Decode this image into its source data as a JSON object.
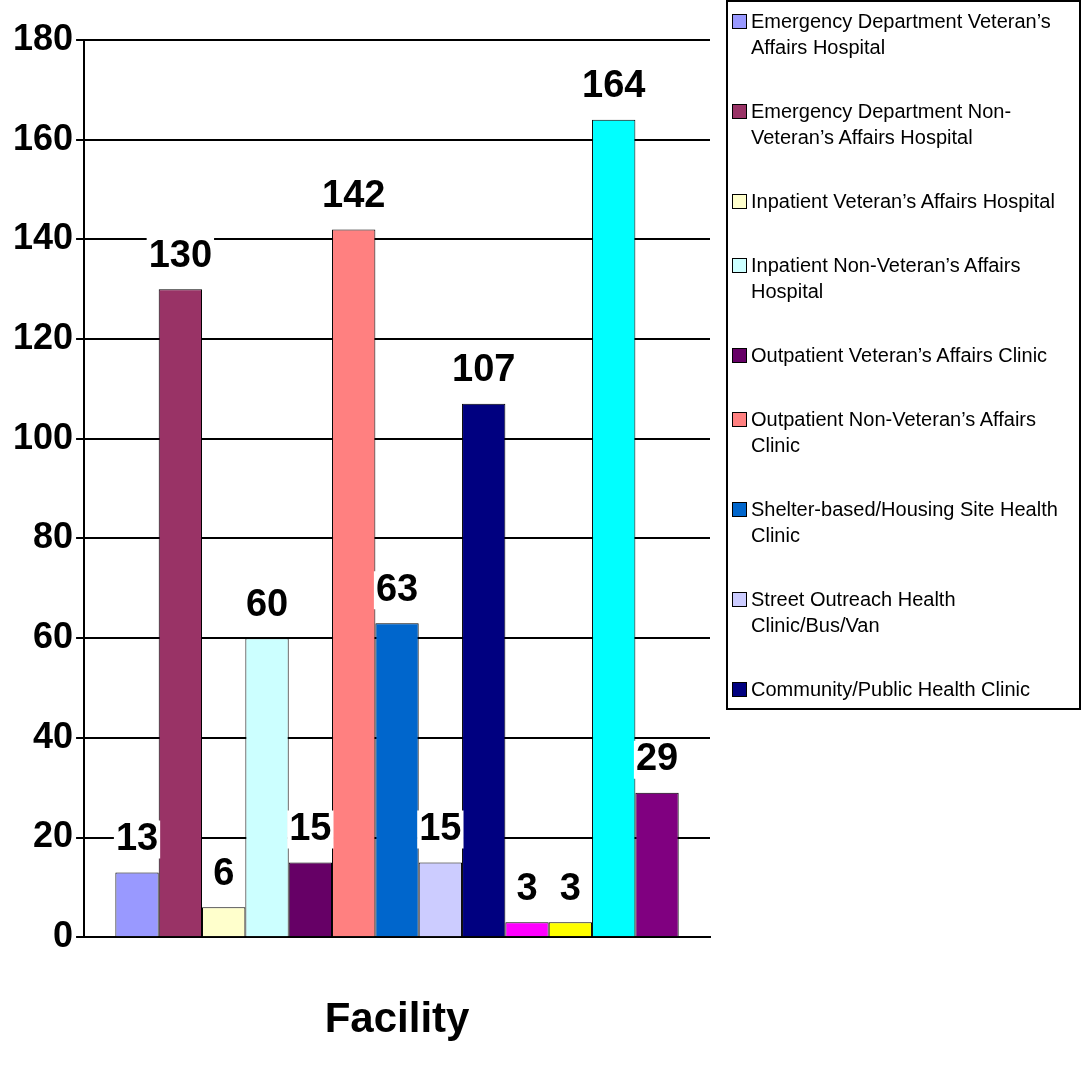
{
  "chart_data": {
    "type": "bar",
    "xlabel": "Facility",
    "categories": [
      null
    ],
    "series": [
      {
        "name": "Emergency Department Veteran’s Affairs Hospital",
        "color": "#9999ff",
        "values": [
          13
        ]
      },
      {
        "name": "Emergency Department Non-Veteran’s Affairs Hospital",
        "color": "#993366",
        "values": [
          130
        ]
      },
      {
        "name": "Inpatient Veteran’s Affairs Hospital",
        "color": "#ffffcc",
        "values": [
          6
        ]
      },
      {
        "name": "Inpatient Non-Veteran’s Affairs Hospital",
        "color": "#ccffff",
        "values": [
          60
        ]
      },
      {
        "name": "Outpatient Veteran’s Affairs Clinic",
        "color": "#660066",
        "values": [
          15
        ]
      },
      {
        "name": "Outpatient Non-Veteran’s Affairs Clinic",
        "color": "#ff8080",
        "values": [
          142
        ]
      },
      {
        "name": "Shelter-based/Housing Site Health Clinic",
        "color": "#0066cc",
        "values": [
          63
        ]
      },
      {
        "name": "Street Outreach Health Clinic/Bus/Van",
        "color": "#ccccff",
        "values": [
          15
        ]
      },
      {
        "name": "Community/Public Health Clinic",
        "color": "#000080",
        "values": [
          107
        ]
      },
      {
        "color": "#ff00ff",
        "values": [
          3
        ]
      },
      {
        "color": "#ffff00",
        "values": [
          3
        ]
      },
      {
        "color": "#00ffff",
        "values": [
          164
        ]
      },
      {
        "color": "#800080",
        "values": [
          29
        ]
      }
    ],
    "ylim": [
      0,
      180
    ],
    "yticks": [
      0,
      20,
      40,
      60,
      80,
      100,
      120,
      140,
      160,
      180
    ],
    "grid": "y",
    "data_labels": true,
    "legend": "right"
  }
}
